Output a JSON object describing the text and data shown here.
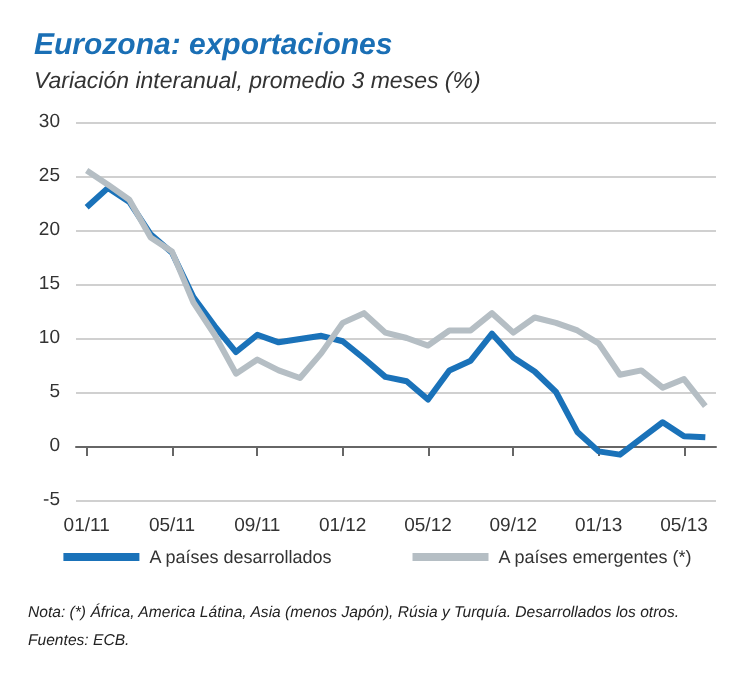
{
  "chart_data": {
    "type": "line",
    "title": "Eurozona: exportaciones",
    "subtitle": "Variación interanual, promedio 3 meses (%)",
    "categories": [
      "01/11",
      null,
      null,
      null,
      "05/11",
      null,
      null,
      null,
      "09/11",
      null,
      null,
      null,
      "01/12",
      null,
      null,
      null,
      "05/12",
      null,
      null,
      null,
      "09/12",
      null,
      null,
      null,
      "01/13",
      null,
      null,
      null,
      "05/13",
      null
    ],
    "series": [
      {
        "name": "A países desarrollados",
        "color": "#1a72b9",
        "values": [
          22.1,
          23.9,
          22.6,
          19.6,
          17.9,
          13.8,
          11.1,
          8.7,
          10.3,
          9.6,
          9.9,
          10.2,
          9.7,
          8.1,
          6.4,
          6.0,
          4.3,
          7.0,
          7.9,
          10.4,
          8.2,
          6.9,
          5.0,
          1.3,
          -0.5,
          -0.8,
          0.7,
          2.2,
          0.9,
          0.8
        ]
      },
      {
        "name": "A países emergentes (*)",
        "color": "#b5bec4",
        "values": [
          25.5,
          24.2,
          22.8,
          19.3,
          18.0,
          13.3,
          10.3,
          6.7,
          8.0,
          7.0,
          6.3,
          8.6,
          11.4,
          12.3,
          10.5,
          10.0,
          9.3,
          10.7,
          10.7,
          12.3,
          10.5,
          11.9,
          11.4,
          10.7,
          9.5,
          6.6,
          7.0,
          5.4,
          6.2,
          3.7
        ]
      }
    ],
    "ylim": [
      -5,
      30
    ],
    "yticks": [
      -5,
      0,
      5,
      10,
      15,
      20,
      25,
      30
    ],
    "grid": "y",
    "legend": "bottom",
    "marker": "none",
    "line_style": "solid",
    "annotations": [
      "Nota: (*) África, America Látina, Asia (menos Japón), Rúsia y Turquía. Desarrollados los otros.",
      "Fuentes: ECB."
    ]
  }
}
